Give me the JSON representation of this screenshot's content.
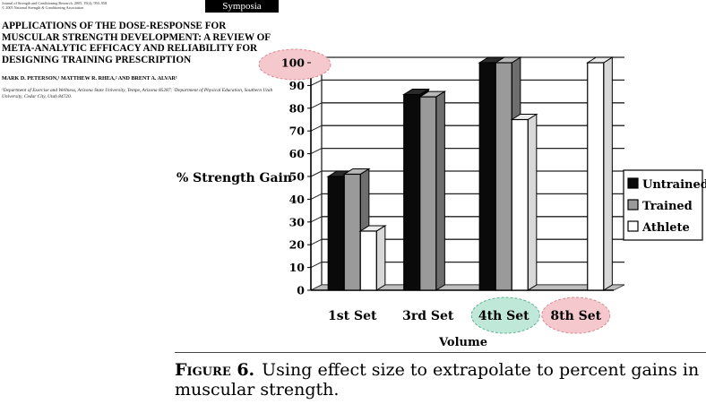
{
  "header": {
    "journal_line1": "Journal of Strength and Conditioning Research, 2005, 19(4), 950–958",
    "journal_line2": "© 2005 National Strength & Conditioning Association",
    "section_tab": "Symposia"
  },
  "article": {
    "title": "Applications of the Dose-Response for Muscular Strength Development: A Review of Meta-Analytic Efficacy and Reliability for Designing Training Prescription",
    "authors": "Mark D. Peterson,¹ Matthew R. Rhea,² and Brent A. Alvar¹",
    "affiliation": "¹Department of Exercise and Wellness, Arizona State University, Tempe, Arizona 85287; ²Department of Physical Education, Southern Utah University, Cedar City, Utah 84720."
  },
  "chart_data": {
    "type": "bar",
    "categories": [
      "1st Set",
      "3rd Set",
      "4th Set",
      "8th Set"
    ],
    "series": [
      {
        "name": "Untrained",
        "values": [
          50,
          86,
          100,
          null
        ]
      },
      {
        "name": "Trained",
        "values": [
          51,
          85,
          100,
          null
        ]
      },
      {
        "name": "Athlete",
        "values": [
          26,
          null,
          75,
          100
        ]
      }
    ],
    "ylabel": "% Strength Gain",
    "xlabel": "Volume",
    "ylim": [
      0,
      100
    ],
    "yticks": [
      0,
      10,
      20,
      30,
      40,
      50,
      60,
      70,
      80,
      90,
      100
    ],
    "grid": true,
    "legend_position": "right",
    "colors": {
      "Untrained": "#0a0a0a",
      "Trained": "#9a9a9a",
      "Athlete": "#ffffff",
      "highlight_pink": "#f4c8cc",
      "highlight_teal": "#bfe8d8"
    },
    "highlights": [
      "100",
      "4th Set",
      "8th Set"
    ]
  },
  "caption": {
    "label": "Figure 6.",
    "text": "Using effect size to extrapolate to percent gains in muscular strength."
  }
}
